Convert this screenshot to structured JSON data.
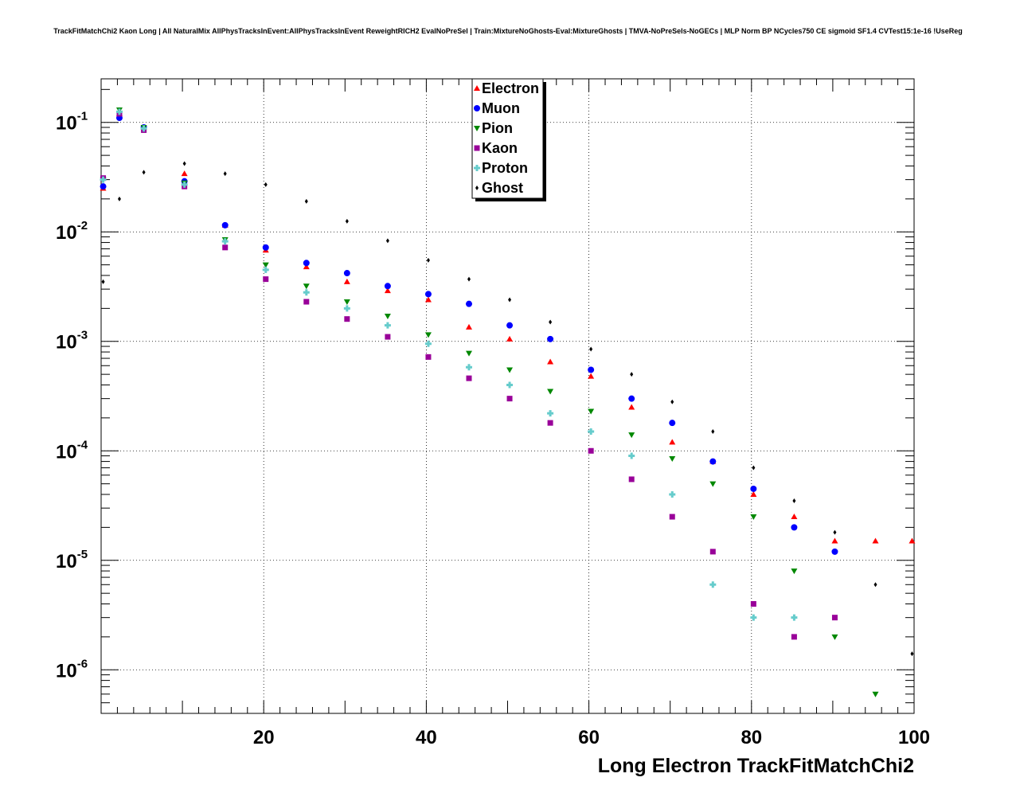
{
  "chart_data": {
    "type": "scatter",
    "title": "TrackFitMatchChi2 Kaon Long | All NaturalMix AllPhysTracksInEvent:AllPhysTracksInEvent ReweightRICH2 EvalNoPreSel | Train:MixtureNoGhosts-Eval:MixtureGhosts | TMVA-NoPreSels-NoGECs | MLP Norm BP NCycles750 CE sigmoid SF1.4 CVTest15:1e-16 !UseReg",
    "xlabel": "Long Electron TrackFitMatchChi2",
    "ylabel": "",
    "xlim": [
      0,
      100
    ],
    "ylim": [
      4e-07,
      0.25
    ],
    "yscale": "log",
    "grid": true,
    "legend_position": "top-center",
    "x_ticks": [
      "20",
      "40",
      "60",
      "80",
      "100"
    ],
    "y_ticks": [
      {
        "base": "10",
        "exp": "-1"
      },
      {
        "base": "10",
        "exp": "-2"
      },
      {
        "base": "10",
        "exp": "-3"
      },
      {
        "base": "10",
        "exp": "-4"
      },
      {
        "base": "10",
        "exp": "-5"
      },
      {
        "base": "10",
        "exp": "-6"
      }
    ],
    "series": [
      {
        "name": "Electron",
        "color": "#ff0000",
        "marker": "triangle-up",
        "x": [
          0.25,
          2.25,
          5.25,
          10.25,
          15.25,
          20.25,
          25.25,
          30.25,
          35.25,
          40.25,
          45.25,
          50.25,
          55.25,
          60.25,
          65.25,
          70.25,
          75.25,
          80.25,
          85.25,
          90.25,
          95.25,
          99.75
        ],
        "y": [
          0.025,
          0.12,
          0.09,
          0.034,
          0.0115,
          0.0068,
          0.0048,
          0.0035,
          0.0029,
          0.0024,
          0.00135,
          0.00105,
          0.00065,
          0.00048,
          0.00025,
          0.00012,
          8e-05,
          4e-05,
          2.5e-05,
          1.5e-05,
          1.5e-05,
          1.5e-05
        ]
      },
      {
        "name": "Muon",
        "color": "#0000ff",
        "marker": "circle",
        "x": [
          0.25,
          2.25,
          5.25,
          10.25,
          15.25,
          20.25,
          25.25,
          30.25,
          35.25,
          40.25,
          45.25,
          50.25,
          55.25,
          60.25,
          65.25,
          70.25,
          75.25,
          80.25,
          85.25,
          90.25
        ],
        "y": [
          0.026,
          0.11,
          0.09,
          0.029,
          0.0115,
          0.0072,
          0.0052,
          0.0042,
          0.0032,
          0.0027,
          0.0022,
          0.0014,
          0.00105,
          0.00055,
          0.0003,
          0.00018,
          8e-05,
          4.5e-05,
          2e-05,
          1.2e-05
        ]
      },
      {
        "name": "Pion",
        "color": "#008800",
        "marker": "triangle-down",
        "x": [
          0.25,
          2.25,
          5.25,
          10.25,
          15.25,
          20.25,
          25.25,
          30.25,
          35.25,
          40.25,
          45.25,
          50.25,
          55.25,
          60.25,
          65.25,
          70.25,
          75.25,
          80.25,
          85.25,
          90.25,
          95.25
        ],
        "y": [
          0.03,
          0.13,
          0.09,
          0.028,
          0.0085,
          0.005,
          0.0032,
          0.0023,
          0.0017,
          0.00115,
          0.00078,
          0.00055,
          0.00035,
          0.00023,
          0.00014,
          8.5e-05,
          5e-05,
          2.5e-05,
          8e-06,
          2e-06,
          6e-07
        ]
      },
      {
        "name": "Kaon",
        "color": "#990099",
        "marker": "square",
        "x": [
          0.25,
          2.25,
          5.25,
          10.25,
          15.25,
          20.25,
          25.25,
          30.25,
          35.25,
          40.25,
          45.25,
          50.25,
          55.25,
          60.25,
          65.25,
          70.25,
          75.25,
          80.25,
          85.25,
          90.25
        ],
        "y": [
          0.031,
          0.12,
          0.085,
          0.026,
          0.0072,
          0.0037,
          0.0023,
          0.0016,
          0.0011,
          0.00072,
          0.00046,
          0.0003,
          0.00018,
          0.0001,
          5.5e-05,
          2.5e-05,
          1.2e-05,
          4e-06,
          2e-06,
          3e-06
        ]
      },
      {
        "name": "Proton",
        "color": "#66cccc",
        "marker": "cross",
        "x": [
          0.25,
          2.25,
          5.25,
          10.25,
          15.25,
          20.25,
          25.25,
          30.25,
          35.25,
          40.25,
          45.25,
          50.25,
          55.25,
          60.25,
          65.25,
          70.25,
          75.25,
          80.25,
          85.25
        ],
        "y": [
          0.03,
          0.125,
          0.088,
          0.027,
          0.0082,
          0.0045,
          0.0028,
          0.002,
          0.0014,
          0.00095,
          0.00058,
          0.0004,
          0.00022,
          0.00015,
          9e-05,
          4e-05,
          6e-06,
          3e-06,
          3e-06
        ]
      },
      {
        "name": "Ghost",
        "color": "#000000",
        "marker": "diamond",
        "x": [
          0.25,
          2.25,
          5.25,
          10.25,
          15.25,
          20.25,
          25.25,
          30.25,
          35.25,
          40.25,
          45.25,
          50.25,
          55.25,
          60.25,
          65.25,
          70.25,
          75.25,
          80.25,
          85.25,
          90.25,
          95.25,
          99.75
        ],
        "y": [
          0.0035,
          0.02,
          0.035,
          0.042,
          0.034,
          0.027,
          0.019,
          0.0125,
          0.0083,
          0.0055,
          0.0037,
          0.0024,
          0.0015,
          0.00085,
          0.0005,
          0.00028,
          0.00015,
          7e-05,
          3.5e-05,
          1.8e-05,
          6e-06,
          1.4e-06
        ]
      }
    ]
  }
}
